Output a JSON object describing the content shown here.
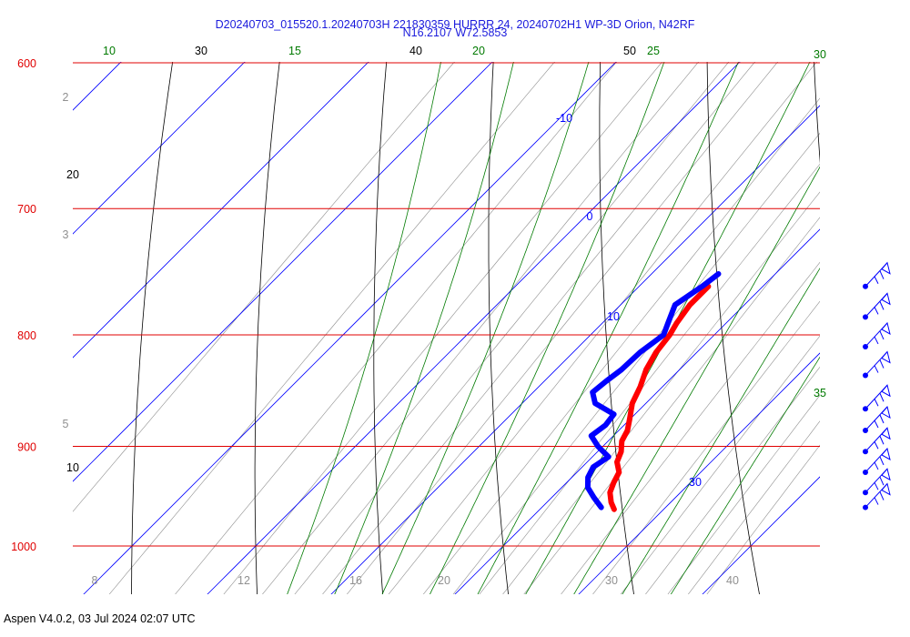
{
  "header": {
    "line1": "D20240703_015520.1.20240703H 221830359 HURRR 24, 20240702H1 WP-3D Orion, N42RF",
    "line2": "N16.2107 W72.5853"
  },
  "footer": {
    "text": "Aspen V4.0.2, 03 Jul 2024  02:07 UTC"
  },
  "colors": {
    "isobar": "#e00000",
    "dry_adiabat": "#000000",
    "moist_adiabat": "#007a00",
    "isotherm": "#0000ff",
    "mixing_ratio": "#909090",
    "temperature": "#ff0000",
    "dewpoint": "#0000ff",
    "wind_barbs": "#0000ff"
  },
  "chart_data": {
    "type": "line",
    "diagram": "skew-T log-P",
    "pressure_range": [
      600,
      1000
    ],
    "isobars": [
      {
        "p": 600,
        "label": "600"
      },
      {
        "p": 700,
        "label": "700"
      },
      {
        "p": 800,
        "label": "800"
      },
      {
        "p": 900,
        "label": "900"
      },
      {
        "p": 1000,
        "label": "1000"
      }
    ],
    "isotherms": [
      {
        "t": -10,
        "label": "-10"
      },
      {
        "t": 0,
        "label": "0"
      },
      {
        "t": 10,
        "label": "10"
      },
      {
        "t": 30,
        "label": "30"
      }
    ],
    "dry_adiabat_labels": [
      "30",
      "40",
      "50",
      "20",
      "10"
    ],
    "moist_adiabat_labels": [
      "10",
      "15",
      "20",
      "25",
      "30",
      "35"
    ],
    "mixing_ratio_labels": [
      "2",
      "3",
      "5",
      "8",
      "12",
      "16",
      "20",
      "30",
      "40"
    ],
    "series": [
      {
        "name": "Temperature",
        "points": [
          {
            "p": 760,
            "t": 15.6
          },
          {
            "p": 775,
            "t": 15.6
          },
          {
            "p": 790,
            "t": 16.0
          },
          {
            "p": 800,
            "t": 16.4
          },
          {
            "p": 815,
            "t": 16.7
          },
          {
            "p": 830,
            "t": 17.3
          },
          {
            "p": 845,
            "t": 18.2
          },
          {
            "p": 860,
            "t": 18.9
          },
          {
            "p": 875,
            "t": 20.0
          },
          {
            "p": 885,
            "t": 20.7
          },
          {
            "p": 895,
            "t": 21.1
          },
          {
            "p": 905,
            "t": 21.9
          },
          {
            "p": 915,
            "t": 22.4
          },
          {
            "p": 925,
            "t": 23.4
          },
          {
            "p": 935,
            "t": 23.8
          },
          {
            "p": 945,
            "t": 24.3
          },
          {
            "p": 955,
            "t": 25.2
          },
          {
            "p": 962,
            "t": 26.0
          }
        ]
      },
      {
        "name": "Dewpoint",
        "points": [
          {
            "p": 750,
            "t": 15.4
          },
          {
            "p": 760,
            "t": 15.1
          },
          {
            "p": 775,
            "t": 14.4
          },
          {
            "p": 790,
            "t": 15.3
          },
          {
            "p": 800,
            "t": 15.9
          },
          {
            "p": 815,
            "t": 15.4
          },
          {
            "p": 830,
            "t": 15.3
          },
          {
            "p": 840,
            "t": 15.0
          },
          {
            "p": 850,
            "t": 14.8
          },
          {
            "p": 860,
            "t": 15.9
          },
          {
            "p": 870,
            "t": 18.3
          },
          {
            "p": 880,
            "t": 18.5
          },
          {
            "p": 890,
            "t": 18.2
          },
          {
            "p": 900,
            "t": 19.6
          },
          {
            "p": 910,
            "t": 21.3
          },
          {
            "p": 920,
            "t": 20.9
          },
          {
            "p": 930,
            "t": 21.3
          },
          {
            "p": 940,
            "t": 22.1
          },
          {
            "p": 950,
            "t": 23.4
          },
          {
            "p": 960,
            "t": 24.8
          }
        ]
      }
    ],
    "wind_barbs": [
      {
        "p": 760
      },
      {
        "p": 785
      },
      {
        "p": 810
      },
      {
        "p": 835
      },
      {
        "p": 865
      },
      {
        "p": 885
      },
      {
        "p": 905
      },
      {
        "p": 925
      },
      {
        "p": 945
      },
      {
        "p": 960
      }
    ]
  }
}
